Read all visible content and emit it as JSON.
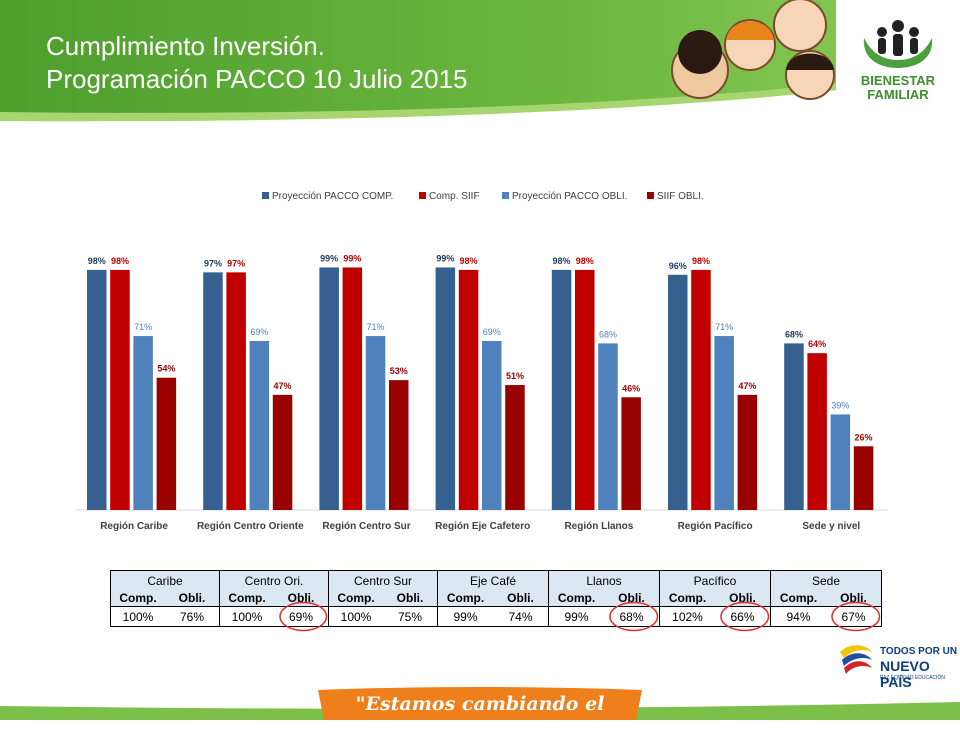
{
  "header": {
    "title_line1": "Cumplimiento Inversión.",
    "title_line2": "Programación PACCO 10 Julio 2015"
  },
  "logo": {
    "line1": "BIENESTAR",
    "line2": "FAMILIAR"
  },
  "colors": {
    "header_green": "#5fae38",
    "proyeccion_comp": "#35608f",
    "comp_siif": "#c00000",
    "proyeccion_obli": "#4f81bd",
    "siif_obli": "#990000",
    "circle_red": "#e03030"
  },
  "chart_data": {
    "type": "bar",
    "categories": [
      "Región Caribe",
      "Región Centro Oriente",
      "Región Centro Sur",
      "Región Eje Cafetero",
      "Región Llanos",
      "Región Pacífico",
      "Sede y nivel"
    ],
    "series": [
      {
        "name": "Proyección PACCO COMP.",
        "color": "#35608f",
        "values": [
          98,
          97,
          99,
          99,
          98,
          96,
          68
        ],
        "labels": [
          "98%",
          "97%",
          "99%",
          "99%",
          "98%",
          "96%",
          "68%"
        ]
      },
      {
        "name": "Comp. SIIF",
        "color": "#c00000",
        "values": [
          98,
          97,
          99,
          98,
          98,
          98,
          64
        ],
        "labels": [
          "98%",
          "97%",
          "99%",
          "98%",
          "98%",
          "98%",
          "64%"
        ]
      },
      {
        "name": "Proyección PACCO OBLI.",
        "color": "#4f81bd",
        "values": [
          71,
          69,
          71,
          69,
          68,
          71,
          39
        ],
        "labels": [
          "71%",
          "69%",
          "71%",
          "69%",
          "68%",
          "71%",
          "39%"
        ]
      },
      {
        "name": "SIIF OBLI.",
        "color": "#990000",
        "values": [
          54,
          47,
          53,
          51,
          46,
          47,
          26
        ],
        "labels": [
          "54%",
          "47%",
          "53%",
          "51%",
          "46%",
          "47%",
          "26%"
        ]
      }
    ],
    "ylim": [
      0,
      100
    ],
    "legend": "top",
    "grid": false
  },
  "table": {
    "regions": [
      "Caribe",
      "Centro Ori.",
      "Centro Sur",
      "Eje Café",
      "Llanos",
      "Pacífico",
      "Sede"
    ],
    "subheaders": [
      "Comp.",
      "Obli."
    ],
    "values": [
      [
        "100%",
        "76%"
      ],
      [
        "100%",
        "69%"
      ],
      [
        "100%",
        "75%"
      ],
      [
        "99%",
        "74%"
      ],
      [
        "99%",
        "68%"
      ],
      [
        "102%",
        "66%"
      ],
      [
        "94%",
        "67%"
      ]
    ],
    "circled": [
      1,
      4,
      5,
      6
    ]
  },
  "footer": {
    "slogan": "\"Estamos cambiando el mundo\"",
    "gov_line1": "TODOS POR UN",
    "gov_line2": "NUEVO PAÍS",
    "gov_line3": "PAZ   EQUIDAD   EDUCACIÓN"
  }
}
